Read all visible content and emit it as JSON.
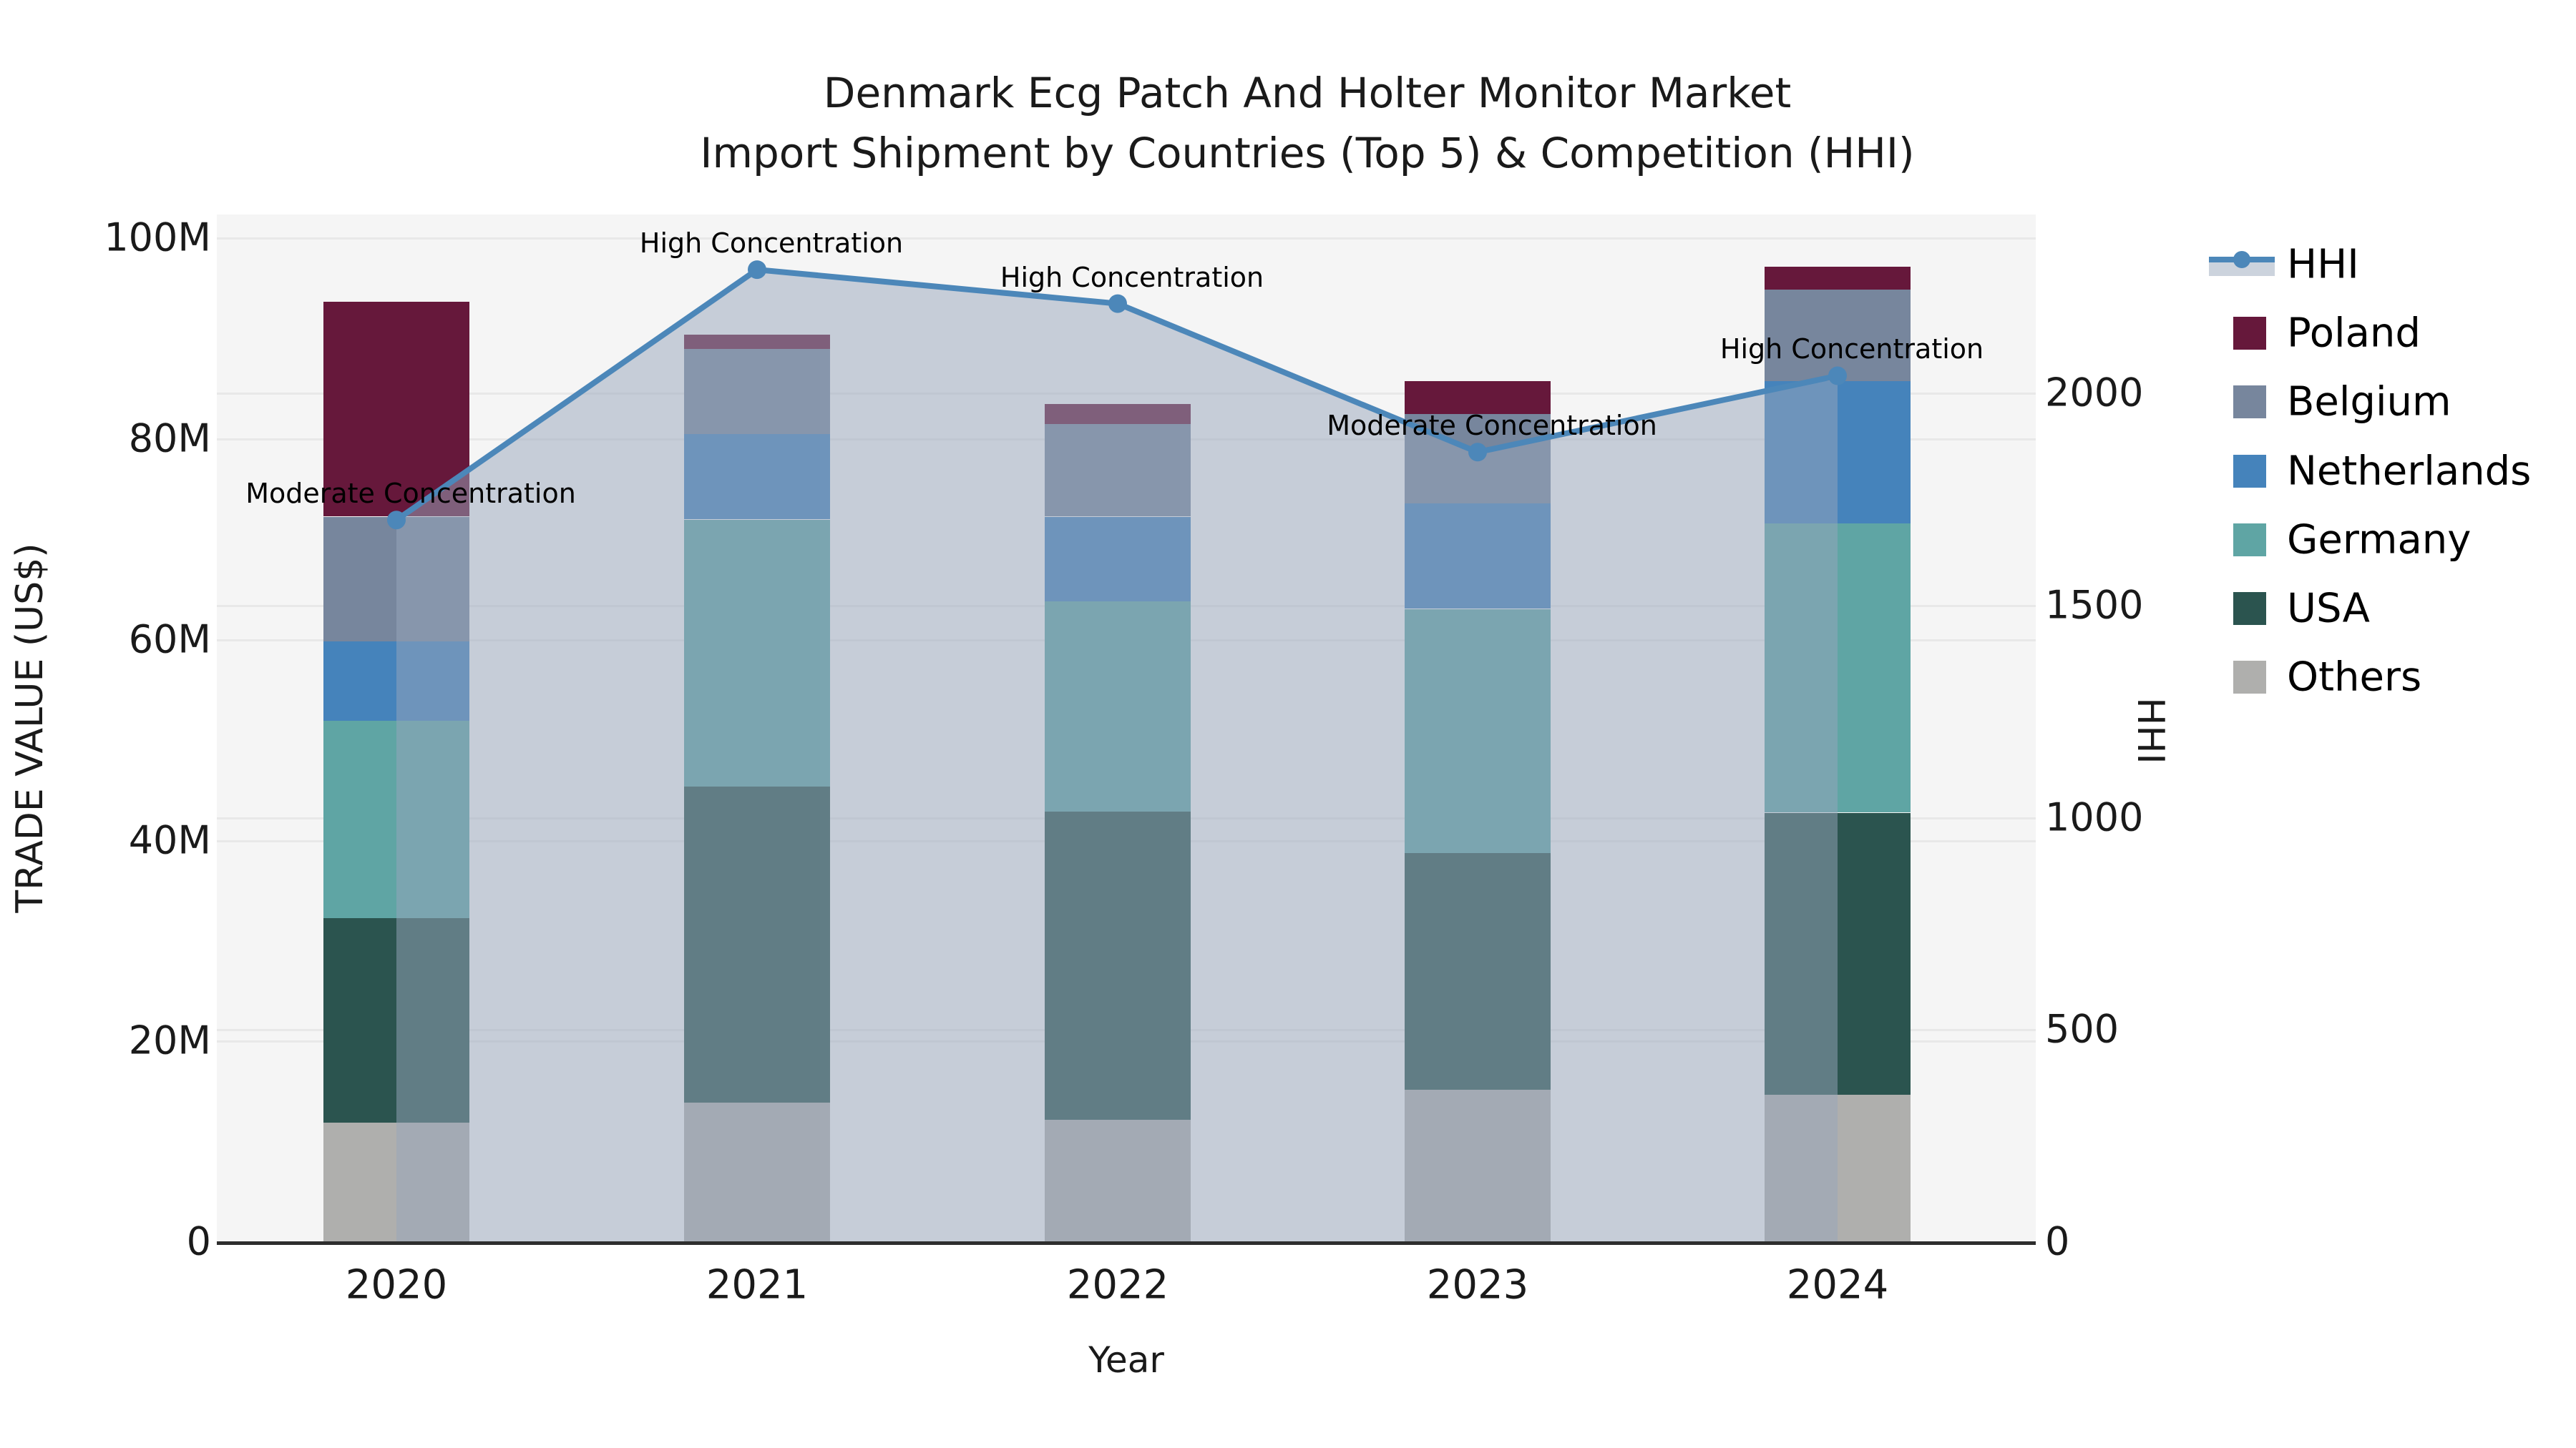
{
  "title": {
    "line1": "Denmark Ecg Patch And Holter Monitor Market",
    "line2": "Import Shipment by Countries (Top 5) & Competition (HHI)"
  },
  "axis_labels": {
    "y_left": "TRADE VALUE (US$)",
    "x": "Year",
    "y_right": "HHI"
  },
  "chart_data": {
    "type": "bar+line",
    "title": "Denmark Ecg Patch And Holter Monitor Market Import Shipment by Countries (Top 5) & Competition (HHI)",
    "categories": [
      "2020",
      "2021",
      "2022",
      "2023",
      "2024"
    ],
    "bar_unit": "US$ millions (trade value)",
    "stack_order": "bottom to top",
    "series": [
      {
        "name": "Others",
        "color": "#AFAFAD",
        "values_musd": [
          11.8,
          13.8,
          12.1,
          15.1,
          14.6
        ]
      },
      {
        "name": "USA",
        "color": "#2B544F",
        "values_musd": [
          20.4,
          31.5,
          30.7,
          23.6,
          28.1
        ]
      },
      {
        "name": "Germany",
        "color": "#5FA5A4",
        "values_musd": [
          19.7,
          26.6,
          21.0,
          24.3,
          28.8
        ]
      },
      {
        "name": "Netherlands",
        "color": "#4583BB",
        "values_musd": [
          7.9,
          8.5,
          8.4,
          10.5,
          14.2
        ]
      },
      {
        "name": "Belgium",
        "color": "#77869D",
        "values_musd": [
          12.4,
          8.5,
          9.2,
          8.9,
          9.1
        ]
      },
      {
        "name": "Poland",
        "color": "#66183B",
        "values_musd": [
          21.4,
          1.4,
          2.0,
          3.3,
          2.3
        ]
      }
    ],
    "bar_totals_musd": [
      93.6,
      90.3,
      83.4,
      85.7,
      97.1
    ],
    "line_series": {
      "name": "HHI",
      "color": "#4C87B9",
      "area_fill": "rgba(152,166,188,0.5)",
      "values": [
        1700,
        2290,
        2210,
        1860,
        2040
      ]
    },
    "annotations": [
      {
        "category": "2020",
        "text": "Moderate Concentration"
      },
      {
        "category": "2021",
        "text": "High Concentration"
      },
      {
        "category": "2022",
        "text": "High Concentration"
      },
      {
        "category": "2023",
        "text": "Moderate Concentration"
      },
      {
        "category": "2024",
        "text": "High Concentration"
      }
    ],
    "left_axis": {
      "label": "TRADE VALUE (US$)",
      "tick_labels": [
        "0",
        "20M",
        "40M",
        "60M",
        "80M",
        "100M"
      ],
      "tick_values_musd": [
        0,
        20,
        40,
        60,
        80,
        100
      ],
      "range_musd": [
        0,
        102.3
      ],
      "grid": true
    },
    "right_axis": {
      "label": "HHI",
      "tick_labels": [
        "0",
        "500",
        "1000",
        "1500",
        "2000"
      ],
      "tick_values": [
        0,
        500,
        1000,
        1500,
        2000
      ],
      "range": [
        0,
        2420
      ],
      "grid": true
    },
    "x_axis": {
      "label": "Year"
    },
    "legend": [
      {
        "name": "HHI",
        "type": "line",
        "color": "#4C87B9"
      },
      {
        "name": "Poland",
        "type": "swatch",
        "color": "#66183B"
      },
      {
        "name": "Belgium",
        "type": "swatch",
        "color": "#77869D"
      },
      {
        "name": "Netherlands",
        "type": "swatch",
        "color": "#4583BB"
      },
      {
        "name": "Germany",
        "type": "swatch",
        "color": "#5FA5A4"
      },
      {
        "name": "USA",
        "type": "swatch",
        "color": "#2B544F"
      },
      {
        "name": "Others",
        "type": "swatch",
        "color": "#AFAFAD"
      }
    ],
    "legend_position": "right"
  }
}
